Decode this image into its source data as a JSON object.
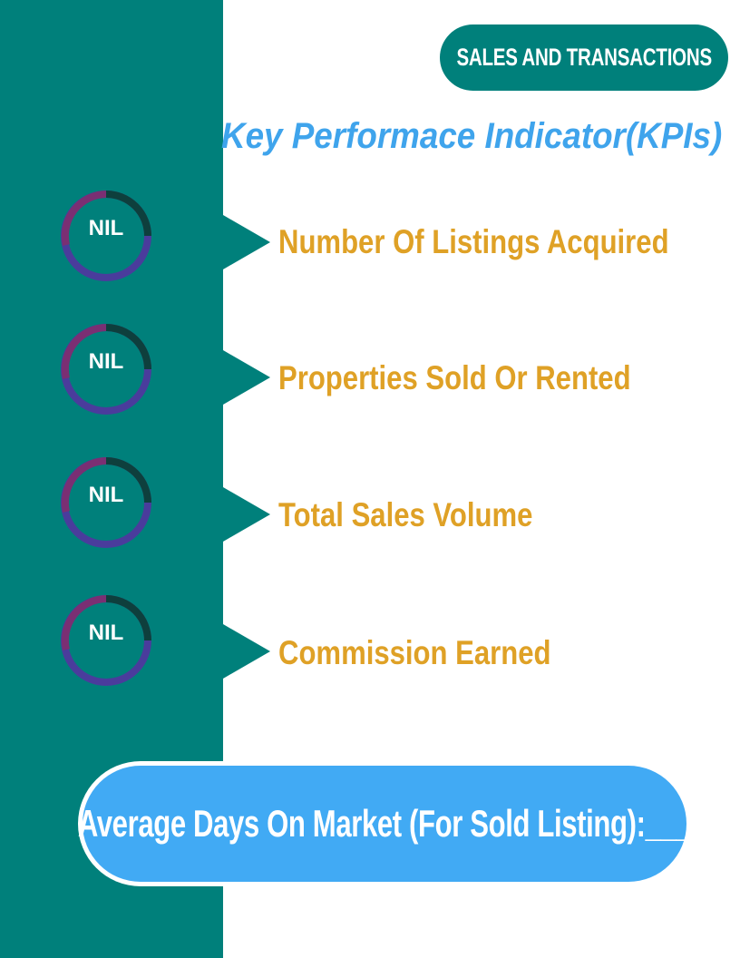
{
  "header": {
    "title": "SALES AND TRANSACTIONS"
  },
  "kpi": {
    "heading": "Key Performace Indicator(KPIs)"
  },
  "metrics": [
    {
      "value": "NIL",
      "label": "Number Of Listings Acquired"
    },
    {
      "value": "NIL",
      "label": "Properties Sold Or Rented"
    },
    {
      "value": "NIL",
      "label": "Total Sales Volume"
    },
    {
      "value": "NIL",
      "label": "Commission Earned"
    }
  ],
  "footer": {
    "text": "Average Days On Market (For Sold Listing):___"
  },
  "colors": {
    "teal": "#00807b",
    "title_blue": "#3fa4ec",
    "label_gold": "#dfa126",
    "ring_purple": "#7a2f73",
    "ring_indigo": "#4a3c9c",
    "ring_dark": "#0e3f3d",
    "footer_blue": "#41aaf4"
  }
}
